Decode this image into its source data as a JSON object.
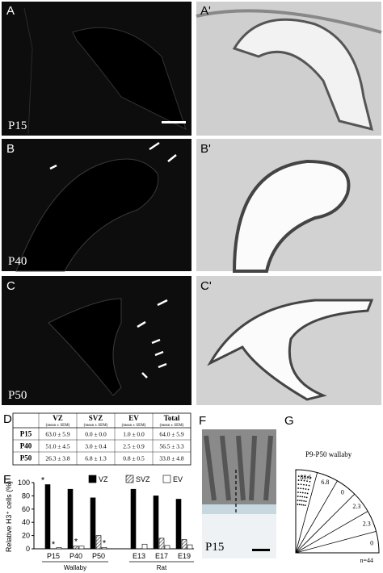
{
  "micrographs": [
    {
      "label": "A",
      "age": "P15"
    },
    {
      "label": "A'"
    },
    {
      "label": "B",
      "age": "P40"
    },
    {
      "label": "B'"
    },
    {
      "label": "C",
      "age": "P50"
    },
    {
      "label": "C'"
    }
  ],
  "table_d": {
    "label": "D",
    "columns": [
      "VZ",
      "SVZ",
      "EV",
      "Total"
    ],
    "subheader": "(mean ± SEM)",
    "rows": [
      [
        "P15",
        "63.0 ± 5.9",
        "0.0 ± 0.0",
        "1.0 ± 0.0",
        "64.0 ± 5.9"
      ],
      [
        "P40",
        "51.0 ± 4.5",
        "3.0 ± 0.4",
        "2.5 ± 0.9",
        "56.5 ± 3.3"
      ],
      [
        "P50",
        "26.3 ± 3.8",
        "6.8 ± 1.3",
        "0.8 ± 0.5",
        "33.8 ± 4.8"
      ]
    ]
  },
  "chart_data": {
    "type": "bar",
    "panel_label": "E",
    "ylabel": "Relative H3⁺ cells (%)",
    "categories": [
      "P15",
      "P40",
      "P50",
      "E13",
      "E17",
      "E19"
    ],
    "groups": [
      "Wallaby",
      "Rat"
    ],
    "series": [
      {
        "name": "VZ",
        "color": "#000000",
        "values": [
          97,
          90,
          77,
          90,
          80,
          75
        ]
      },
      {
        "name": "SVZ",
        "color": "#555555",
        "hatch": true,
        "values": [
          0,
          4,
          20,
          0,
          16,
          14
        ]
      },
      {
        "name": "EV",
        "color": "#ffffff",
        "values": [
          2,
          4,
          2,
          7,
          5,
          6
        ]
      }
    ],
    "annotations": [
      "*",
      "*",
      "*",
      "*"
    ],
    "ylim": [
      0,
      100
    ],
    "yticks": [
      0,
      20,
      40,
      60,
      80,
      100
    ]
  },
  "panel_f": {
    "label": "F",
    "age": "P15"
  },
  "panel_g": {
    "label": "G",
    "title": "P9-P50 wallaby",
    "values": [
      88.6,
      6.8,
      0,
      2.3,
      2.3,
      0
    ],
    "n": "n=44"
  }
}
